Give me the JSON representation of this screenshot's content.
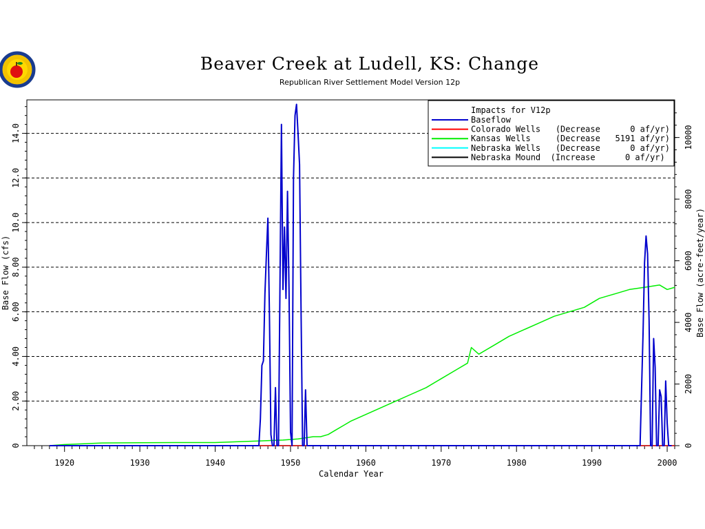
{
  "chart_data": {
    "type": "line",
    "title": "Beaver Creek  at  Ludell,  KS:  Change",
    "subtitle": "Republican River Settlement Model Version 12p",
    "xlabel": "Calendar Year",
    "ylabel": "Base Flow (cfs)",
    "y2label": "Base Flow (acre-feet/year)",
    "xlim": [
      1915,
      2001
    ],
    "ylim": [
      0,
      15.5
    ],
    "y2lim": [
      0,
      11221
    ],
    "xticks": [
      "1920",
      "1930",
      "1940",
      "1950",
      "1960",
      "1970",
      "1980",
      "1990",
      "2000"
    ],
    "yticks": [
      "0",
      "2.00",
      "4.00",
      "6.00",
      "8.00",
      "10.0",
      "12.0",
      "14.0"
    ],
    "y2ticks": [
      "0",
      "2000",
      "4000",
      "6000",
      "8000",
      "10000"
    ],
    "grid": "horizontal dashed",
    "legend": {
      "title": "Impacts for V12p",
      "position": "top-right",
      "entries": [
        {
          "label": "Baseflow",
          "color": "#0000cc"
        },
        {
          "label": "Colorado Wells   (Decrease      0 af/yr)",
          "color": "#ff0000"
        },
        {
          "label": "Kansas Wells     (Decrease   5191 af/yr)",
          "color": "#00ee00"
        },
        {
          "label": "Nebraska Wells   (Decrease      0 af/yr)",
          "color": "#00ffff"
        },
        {
          "label": "Nebraska Mound  (Increase      0 af/yr)",
          "color": "#000000"
        }
      ]
    },
    "series": [
      {
        "name": "Baseflow",
        "color": "#0000cc",
        "x": [
          1918,
          1945.8,
          1946.0,
          1946.2,
          1946.4,
          1946.6,
          1946.8,
          1947.0,
          1947.2,
          1947.4,
          1947.6,
          1947.8,
          1948.0,
          1948.2,
          1948.4,
          1948.6,
          1948.8,
          1949.0,
          1949.2,
          1949.4,
          1949.6,
          1949.8,
          1950.0,
          1950.2,
          1950.4,
          1950.6,
          1950.8,
          1951.0,
          1951.2,
          1951.4,
          1951.6,
          1951.8,
          1952.0,
          1952.2,
          1952.4,
          1952.6,
          1952.8,
          1953.0,
          1953.2,
          1953.4,
          1953.6,
          1953.8,
          1996.0,
          1996.4,
          1996.8,
          1997.0,
          1997.2,
          1997.4,
          1997.6,
          1997.8,
          1998.0,
          1998.2,
          1998.4,
          1998.6,
          1998.8,
          1999.0,
          1999.2,
          1999.4,
          1999.6,
          1999.8,
          2000.0,
          2000.2,
          2000.4,
          2000.6
        ],
        "y": [
          0,
          0,
          1.2,
          3.6,
          3.8,
          6.8,
          8.6,
          10.2,
          6.0,
          0.5,
          0,
          0,
          2.6,
          0,
          0,
          7.0,
          14.4,
          7.0,
          9.8,
          6.6,
          11.4,
          7.0,
          0.6,
          0,
          12.0,
          14.8,
          15.3,
          14.0,
          12.6,
          6.0,
          0,
          0,
          2.5,
          0,
          0,
          0,
          0,
          0,
          0,
          0,
          0,
          0,
          0,
          0,
          5.0,
          8.2,
          9.4,
          8.6,
          5.6,
          0,
          0,
          4.8,
          3.5,
          0,
          0,
          2.5,
          2.2,
          0,
          0,
          2.9,
          1.0,
          0,
          0,
          0
        ]
      },
      {
        "name": "Kansas Wells",
        "color": "#00ee00",
        "x": [
          1918,
          1920,
          1925,
          1930,
          1935,
          1940,
          1945,
          1949,
          1951,
          1953,
          1954,
          1955,
          1956,
          1957,
          1958,
          1960,
          1962,
          1964,
          1966,
          1968,
          1970,
          1972,
          1973.5,
          1974,
          1975,
          1977,
          1979,
          1981,
          1983,
          1985,
          1987,
          1989,
          1991,
          1993,
          1995,
          1997,
          1999,
          2000,
          2001
        ],
        "y": [
          0,
          0.05,
          0.12,
          0.13,
          0.14,
          0.14,
          0.2,
          0.25,
          0.3,
          0.4,
          0.4,
          0.5,
          0.7,
          0.9,
          1.1,
          1.4,
          1.7,
          2.0,
          2.3,
          2.6,
          3.0,
          3.4,
          3.7,
          4.4,
          4.1,
          4.5,
          4.9,
          5.2,
          5.5,
          5.8,
          6.0,
          6.2,
          6.6,
          6.8,
          7.0,
          7.1,
          7.2,
          7.0,
          7.1
        ]
      },
      {
        "name": "Colorado Wells",
        "color": "#ff0000",
        "x": [
          1918,
          2001
        ],
        "y": [
          0,
          0
        ]
      },
      {
        "name": "Nebraska Wells",
        "color": "#00ffff",
        "x": [
          1918,
          2001
        ],
        "y": [
          0,
          0
        ]
      },
      {
        "name": "Nebraska Mound",
        "color": "#000000",
        "x": [
          1918,
          2001
        ],
        "y": [
          0,
          0
        ]
      }
    ]
  }
}
